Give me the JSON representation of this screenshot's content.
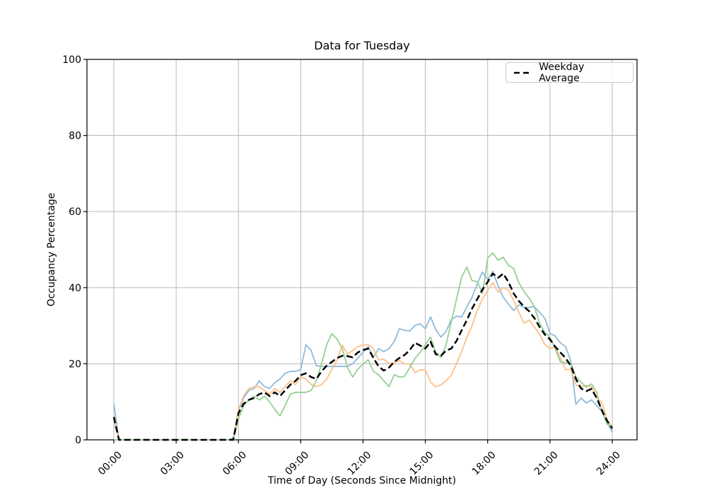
{
  "title": "Data for Tuesday",
  "axes": {
    "x_label": "Time of Day (Seconds Since Midnight)",
    "y_label": "Occupancy Percentage",
    "x_tick_labels": [
      "00:00",
      "03:00",
      "06:00",
      "09:00",
      "12:00",
      "15:00",
      "18:00",
      "21:00",
      "24:00"
    ],
    "x_tick_seconds": [
      0,
      10800,
      21600,
      32400,
      43200,
      54000,
      64800,
      75600,
      86400
    ],
    "y_tick_labels": [
      "0",
      "20",
      "40",
      "60",
      "80",
      "100"
    ],
    "y_ticks": [
      0,
      20,
      40,
      60,
      80,
      100
    ],
    "x_range_seconds": [
      0,
      86400
    ],
    "y_range": [
      0,
      100
    ],
    "grid": true
  },
  "legend": {
    "position": "upper right",
    "entries": [
      {
        "label": "Weekday Average",
        "color": "#000000",
        "dash": true
      }
    ]
  },
  "colors": {
    "blue": "#8fbbd9",
    "orange": "#ffbf86",
    "green": "#95cf95",
    "average": "#000000",
    "grid": "#b0b0b0",
    "spine": "#000000"
  },
  "chart_data": {
    "type": "line",
    "x_seconds": [
      0,
      900,
      1800,
      2700,
      3600,
      4500,
      5400,
      6300,
      7200,
      8100,
      9000,
      9900,
      10800,
      11700,
      12600,
      13500,
      14400,
      15300,
      16200,
      17100,
      18000,
      18900,
      19800,
      20700,
      21600,
      22500,
      23400,
      24300,
      25200,
      26100,
      27000,
      27900,
      28800,
      29700,
      30600,
      31500,
      32400,
      33300,
      34200,
      35100,
      36000,
      36900,
      37800,
      38700,
      39600,
      40500,
      41400,
      42300,
      43200,
      44100,
      45000,
      45900,
      46800,
      47700,
      48600,
      49500,
      50400,
      51300,
      52200,
      53100,
      54000,
      54900,
      55800,
      56700,
      57600,
      58500,
      59400,
      60300,
      61200,
      62100,
      63000,
      63900,
      64800,
      65700,
      66600,
      67500,
      68400,
      69300,
      70200,
      71100,
      72000,
      72900,
      73800,
      74700,
      75600,
      76500,
      77400,
      78300,
      79200,
      80100,
      81000,
      81900,
      82800,
      83700,
      84600,
      85500,
      86400
    ],
    "series": [
      {
        "name": "tuesday-series-blue",
        "color_key": "blue",
        "dash": false,
        "width": 1.8,
        "values": [
          9.5,
          0,
          0,
          0,
          0,
          0,
          0,
          0,
          0,
          0,
          0,
          0,
          0,
          0,
          0,
          0,
          0,
          0,
          0,
          0,
          0,
          0,
          0,
          0.5,
          7.5,
          11,
          13,
          13.5,
          15.5,
          14,
          13.5,
          15,
          16,
          17.5,
          18,
          18,
          18.5,
          25,
          23.5,
          19.5,
          19.3,
          19.3,
          19.3,
          19.3,
          19.3,
          19.3,
          20,
          21.5,
          23,
          24.5,
          21.7,
          24,
          23.2,
          24,
          25.8,
          29.2,
          28.8,
          28.6,
          30.1,
          30.5,
          29.2,
          32.3,
          29,
          27,
          28.5,
          31.6,
          32.5,
          32.3,
          35,
          37.5,
          41,
          44.1,
          42,
          44.3,
          40.5,
          37.5,
          35.7,
          34,
          35.5,
          34.8,
          34.8,
          35,
          33.5,
          32,
          28,
          27.3,
          25.5,
          24.5,
          20.8,
          9.3,
          11,
          9.7,
          10.5,
          9,
          7.4,
          4.5,
          2
        ]
      },
      {
        "name": "tuesday-series-orange",
        "color_key": "orange",
        "dash": false,
        "width": 1.8,
        "values": [
          5,
          0,
          0,
          0,
          0,
          0,
          0,
          0,
          0,
          0,
          0,
          0,
          0,
          0,
          0,
          0,
          0,
          0,
          0,
          0,
          0,
          0,
          0,
          0,
          8,
          11.5,
          13.5,
          14,
          14,
          13,
          12,
          13.5,
          12.5,
          14,
          15.5,
          14.5,
          16.5,
          16,
          14.5,
          14,
          14.5,
          16,
          18.5,
          21,
          24.9,
          22.5,
          23.5,
          24.5,
          24.9,
          25,
          24,
          21,
          21.2,
          20,
          20.3,
          20.8,
          20,
          19.9,
          17.7,
          18.4,
          18.4,
          15.2,
          13.9,
          14.5,
          15.5,
          17,
          20,
          23.2,
          27,
          30,
          34,
          37,
          39.4,
          41.3,
          38.8,
          40,
          39.4,
          36.6,
          33.5,
          30.7,
          31.5,
          29.7,
          27.7,
          25.1,
          24,
          24.5,
          21.5,
          18.5,
          18.5,
          14.5,
          13.8,
          14.3,
          14,
          11,
          9.7,
          5.4,
          3.2
        ]
      },
      {
        "name": "tuesday-series-green",
        "color_key": "green",
        "dash": false,
        "width": 1.8,
        "values": [
          0,
          0,
          0,
          0,
          0,
          0,
          0,
          0,
          0,
          0,
          0,
          0,
          0,
          0,
          0,
          0,
          0,
          0,
          0,
          0,
          0,
          0,
          0,
          0,
          5.5,
          9,
          10.5,
          11.5,
          10.5,
          11.5,
          10,
          8,
          6.3,
          9,
          12,
          12.5,
          12.5,
          12.5,
          13,
          15.5,
          20,
          25,
          27.9,
          26.5,
          24,
          19,
          16.5,
          18.6,
          19.9,
          21,
          18,
          17.1,
          15.5,
          14,
          17.1,
          16.5,
          16.7,
          19,
          21.4,
          23,
          25,
          27,
          23,
          21.7,
          25,
          31,
          37,
          42.8,
          45.4,
          41.8,
          41.6,
          38.5,
          47.8,
          49.1,
          47.2,
          48,
          45.9,
          45,
          41.3,
          39,
          37.2,
          35.1,
          30.7,
          28.3,
          27,
          24,
          20.5,
          20.3,
          20.4,
          16.5,
          15.2,
          13.8,
          14.7,
          12.5,
          7.4,
          4.1,
          3.7
        ]
      },
      {
        "name": "Weekday Average",
        "color_key": "average",
        "dash": true,
        "width": 2.5,
        "values": [
          6,
          0,
          0,
          0,
          0,
          0,
          0,
          0,
          0,
          0,
          0,
          0,
          0,
          0,
          0,
          0,
          0,
          0,
          0,
          0,
          0,
          0,
          0,
          0,
          7,
          9.5,
          10.5,
          11,
          12,
          12.5,
          11.5,
          12.5,
          11.5,
          13,
          14.5,
          15.5,
          17,
          17.5,
          16.5,
          16,
          18,
          19.5,
          20.5,
          21.5,
          22.1,
          22,
          21.7,
          23,
          23.6,
          24,
          21.5,
          19.3,
          18.2,
          19,
          20.5,
          21.5,
          22.3,
          23.6,
          25.5,
          24.8,
          24,
          25.8,
          22.5,
          22.1,
          23.5,
          24,
          26,
          28.8,
          31.5,
          34.5,
          37,
          39.5,
          41.5,
          43.7,
          42.6,
          43.7,
          41.5,
          38.5,
          36.5,
          35,
          33.8,
          32,
          29.7,
          27.7,
          26.4,
          24.5,
          23,
          21.5,
          19.5,
          16,
          13.5,
          12.8,
          13.4,
          11,
          7.8,
          5,
          3
        ]
      }
    ]
  }
}
